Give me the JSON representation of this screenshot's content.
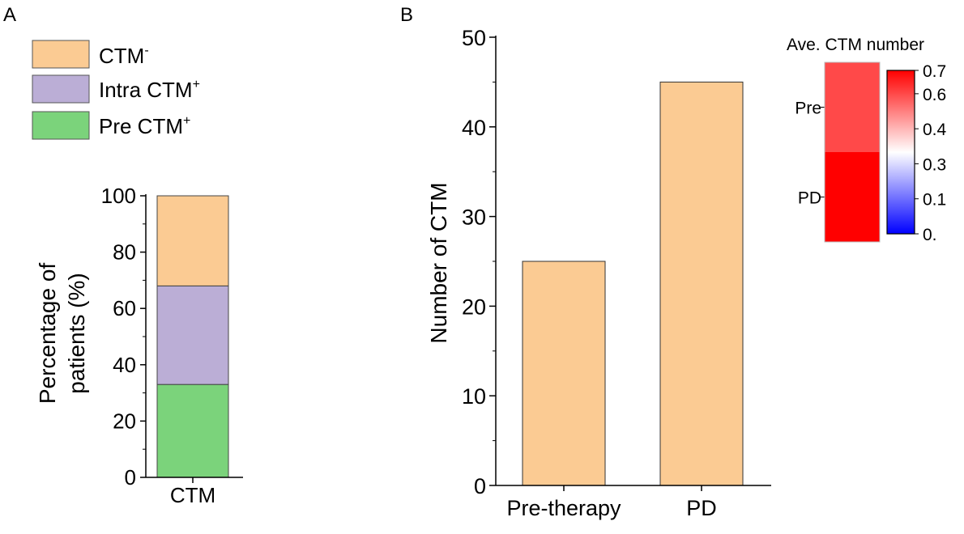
{
  "panel_a": {
    "panel_label": "A",
    "legend": [
      {
        "name": "CTM",
        "sup": "-",
        "color": "#FBCB93"
      },
      {
        "name": "Intra CTM",
        "sup": "+",
        "color": "#BBAED6"
      },
      {
        "name": "Pre CTM",
        "sup": "+",
        "color": "#7BD37B"
      }
    ]
  },
  "panel_b": {
    "panel_label": "B",
    "heatmap": {
      "title": "Ave. CTM number",
      "rows": [
        "Pre",
        "PD"
      ],
      "values": [
        0.6,
        0.7
      ],
      "colorbar_ticks": [
        "0.7",
        "0.6",
        "0.4",
        "0.3",
        "0.1",
        "0."
      ],
      "colorbar_tick_values": [
        0.7,
        0.6,
        0.45,
        0.3,
        0.15,
        0.0
      ],
      "range": [
        0,
        0.7
      ],
      "colors": {
        "low": "#0000FF",
        "mid": "#FFFFFF",
        "high": "#FF0000"
      }
    }
  },
  "chart_data": [
    {
      "type": "bar",
      "stacked": true,
      "categories": [
        "CTM"
      ],
      "series": [
        {
          "name": "Pre CTM+",
          "values": [
            33
          ],
          "color": "#7BD37B"
        },
        {
          "name": "Intra CTM+",
          "values": [
            35
          ],
          "color": "#BBAED6"
        },
        {
          "name": "CTM-",
          "values": [
            32
          ],
          "color": "#FBCB93"
        }
      ],
      "ylabel_lines": [
        "Percentage of",
        "patients (%)"
      ],
      "ylim": [
        0,
        100
      ],
      "yticks": [
        0,
        20,
        40,
        60,
        80,
        100
      ],
      "legend_position": "top"
    },
    {
      "type": "bar",
      "categories": [
        "Pre-therapy",
        "PD"
      ],
      "values": [
        25,
        45
      ],
      "color": "#FBCB93",
      "ylabel": "Number of CTM",
      "ylim": [
        0,
        50
      ],
      "yticks": [
        0,
        10,
        20,
        30,
        40,
        50
      ]
    }
  ]
}
